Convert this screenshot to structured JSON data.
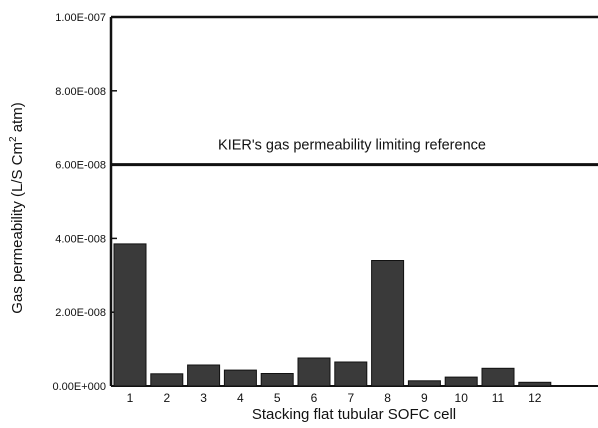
{
  "chart_data": {
    "type": "bar",
    "xlabel": "Stacking flat tubular SOFC cell",
    "ylabel": "Gas permeability (L/S Cm² atm)",
    "ylim": [
      0,
      1e-07
    ],
    "yticks": [
      0,
      2e-08,
      4e-08,
      6e-08,
      8e-08,
      1e-07
    ],
    "ytick_labels": [
      "0.00E+000",
      "2.00E-008",
      "4.00E-008",
      "6.00E-008",
      "8.00E-008",
      "1.00E-007"
    ],
    "categories": [
      "1",
      "2",
      "3",
      "4",
      "5",
      "6",
      "7",
      "8",
      "9",
      "10",
      "11",
      "12"
    ],
    "values": [
      3.85e-08,
      3.3e-09,
      5.7e-09,
      4.3e-09,
      3.4e-09,
      7.6e-09,
      6.5e-09,
      3.4e-08,
      1.4e-09,
      2.4e-09,
      4.8e-09,
      1e-09
    ],
    "reference_line": {
      "value": 6e-08,
      "label": "KIER's gas permeability limiting reference"
    },
    "bar_color": "#3a3a3a",
    "grid": false
  }
}
